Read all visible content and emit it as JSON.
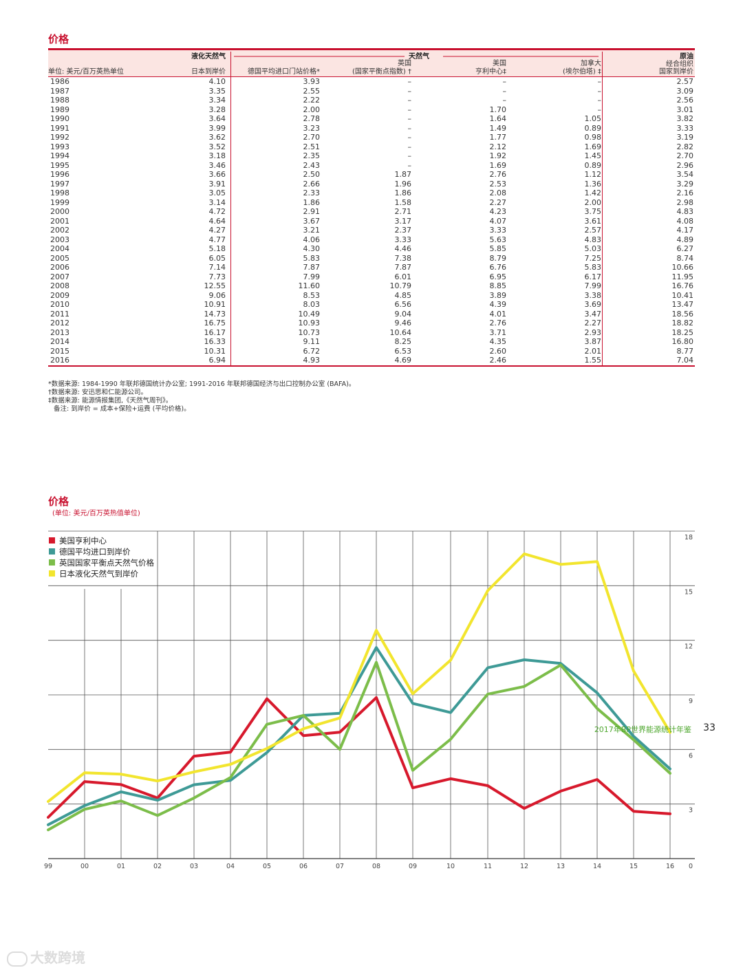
{
  "table": {
    "title": "价格",
    "headers": {
      "unit": "单位: 美元/百万英热单位",
      "lng_group": "液化天然气",
      "lng_sub": "日本到岸价",
      "gas_group": "天然气",
      "germany": "德国平均进口门站价格*",
      "uk_top": "英国",
      "uk_sub": "(国家平衡点指数) †",
      "us_top": "美国",
      "us_sub": "亨利中心‡",
      "ca_top": "加拿大",
      "ca_sub": "(埃尔伯塔) ‡",
      "crude_group": "原油",
      "crude_mid": "经合组织",
      "crude_sub": "国家到岸价"
    },
    "rows": [
      [
        "1986",
        "4.10",
        "3.93",
        "–",
        "–",
        "–",
        "2.57"
      ],
      [
        "1987",
        "3.35",
        "2.55",
        "–",
        "–",
        "–",
        "3.09"
      ],
      [
        "1988",
        "3.34",
        "2.22",
        "–",
        "–",
        "–",
        "2.56"
      ],
      [
        "1989",
        "3.28",
        "2.00",
        "–",
        "1.70",
        "–",
        "3.01"
      ],
      [
        "1990",
        "3.64",
        "2.78",
        "–",
        "1.64",
        "1.05",
        "3.82"
      ],
      [
        "1991",
        "3.99",
        "3.23",
        "–",
        "1.49",
        "0.89",
        "3.33"
      ],
      [
        "1992",
        "3.62",
        "2.70",
        "–",
        "1.77",
        "0.98",
        "3.19"
      ],
      [
        "1993",
        "3.52",
        "2.51",
        "–",
        "2.12",
        "1.69",
        "2.82"
      ],
      [
        "1994",
        "3.18",
        "2.35",
        "–",
        "1.92",
        "1.45",
        "2.70"
      ],
      [
        "1995",
        "3.46",
        "2.43",
        "–",
        "1.69",
        "0.89",
        "2.96"
      ],
      [
        "1996",
        "3.66",
        "2.50",
        "1.87",
        "2.76",
        "1.12",
        "3.54"
      ],
      [
        "1997",
        "3.91",
        "2.66",
        "1.96",
        "2.53",
        "1.36",
        "3.29"
      ],
      [
        "1998",
        "3.05",
        "2.33",
        "1.86",
        "2.08",
        "1.42",
        "2.16"
      ],
      [
        "1999",
        "3.14",
        "1.86",
        "1.58",
        "2.27",
        "2.00",
        "2.98"
      ],
      [
        "2000",
        "4.72",
        "2.91",
        "2.71",
        "4.23",
        "3.75",
        "4.83"
      ],
      [
        "2001",
        "4.64",
        "3.67",
        "3.17",
        "4.07",
        "3.61",
        "4.08"
      ],
      [
        "2002",
        "4.27",
        "3.21",
        "2.37",
        "3.33",
        "2.57",
        "4.17"
      ],
      [
        "2003",
        "4.77",
        "4.06",
        "3.33",
        "5.63",
        "4.83",
        "4.89"
      ],
      [
        "2004",
        "5.18",
        "4.30",
        "4.46",
        "5.85",
        "5.03",
        "6.27"
      ],
      [
        "2005",
        "6.05",
        "5.83",
        "7.38",
        "8.79",
        "7.25",
        "8.74"
      ],
      [
        "2006",
        "7.14",
        "7.87",
        "7.87",
        "6.76",
        "5.83",
        "10.66"
      ],
      [
        "2007",
        "7.73",
        "7.99",
        "6.01",
        "6.95",
        "6.17",
        "11.95"
      ],
      [
        "2008",
        "12.55",
        "11.60",
        "10.79",
        "8.85",
        "7.99",
        "16.76"
      ],
      [
        "2009",
        "9.06",
        "8.53",
        "4.85",
        "3.89",
        "3.38",
        "10.41"
      ],
      [
        "2010",
        "10.91",
        "8.03",
        "6.56",
        "4.39",
        "3.69",
        "13.47"
      ],
      [
        "2011",
        "14.73",
        "10.49",
        "9.04",
        "4.01",
        "3.47",
        "18.56"
      ],
      [
        "2012",
        "16.75",
        "10.93",
        "9.46",
        "2.76",
        "2.27",
        "18.82"
      ],
      [
        "2013",
        "16.17",
        "10.73",
        "10.64",
        "3.71",
        "2.93",
        "18.25"
      ],
      [
        "2014",
        "16.33",
        "9.11",
        "8.25",
        "4.35",
        "3.87",
        "16.80"
      ],
      [
        "2015",
        "10.31",
        "6.72",
        "6.53",
        "2.60",
        "2.01",
        "8.77"
      ],
      [
        "2016",
        "6.94",
        "4.93",
        "4.69",
        "2.46",
        "1.55",
        "7.04"
      ]
    ],
    "notes": [
      "*数据来源: 1984-1990 年联邦德国统计办公室; 1991-2016 年联邦德国经济与出口控制办公室 (BAFA)。",
      "†数据来源: 安迅思和仁能源公司。",
      "‡数据来源: 能源情报集团,《天然气周刊》。",
      "备注: 到岸价 = 成本+保险+运费 (平均价格)。"
    ]
  },
  "chart_data": {
    "type": "line",
    "title": "价格",
    "subtitle": "(单位: 美元/百万英热值单位)",
    "xlabel": "",
    "ylabel": "",
    "x": [
      "99",
      "00",
      "01",
      "02",
      "03",
      "04",
      "05",
      "06",
      "07",
      "08",
      "09",
      "10",
      "11",
      "12",
      "13",
      "14",
      "15",
      "16"
    ],
    "ylim": [
      0,
      18
    ],
    "yticks": [
      0,
      3,
      6,
      9,
      12,
      15,
      18
    ],
    "grid": true,
    "legend_position": "top-left",
    "series": [
      {
        "name": "美国亨利中心",
        "color": "#d7192c",
        "values": [
          2.27,
          4.23,
          4.07,
          3.33,
          5.63,
          5.85,
          8.79,
          6.76,
          6.95,
          8.85,
          3.89,
          4.39,
          4.01,
          2.76,
          3.71,
          4.35,
          2.6,
          2.46
        ]
      },
      {
        "name": "德国平均进口到岸价",
        "color": "#3e9a96",
        "values": [
          1.86,
          2.91,
          3.67,
          3.21,
          4.06,
          4.3,
          5.83,
          7.87,
          7.99,
          11.6,
          8.53,
          8.03,
          10.49,
          10.93,
          10.73,
          9.11,
          6.72,
          4.93
        ]
      },
      {
        "name": "英国国家平衡点天然气价格",
        "color": "#7cbd4a",
        "values": [
          1.58,
          2.71,
          3.17,
          2.37,
          3.33,
          4.46,
          7.38,
          7.87,
          6.01,
          10.79,
          4.85,
          6.56,
          9.04,
          9.46,
          10.64,
          8.25,
          6.53,
          4.69
        ]
      },
      {
        "name": "日本液化天然气到岸价",
        "color": "#f2e52e",
        "values": [
          3.14,
          4.72,
          4.64,
          4.27,
          4.77,
          5.18,
          6.05,
          7.14,
          7.73,
          12.55,
          9.06,
          10.91,
          14.73,
          16.75,
          16.17,
          16.33,
          10.31,
          6.94
        ]
      }
    ]
  },
  "footer": {
    "publication": "2017年BP世界能源统计年鉴",
    "page_number": "33",
    "watermark": "大数跨境"
  },
  "colors": {
    "accent": "#c8102e",
    "header_bg": "#fbe5e2",
    "footer_green": "#4ea72e"
  }
}
